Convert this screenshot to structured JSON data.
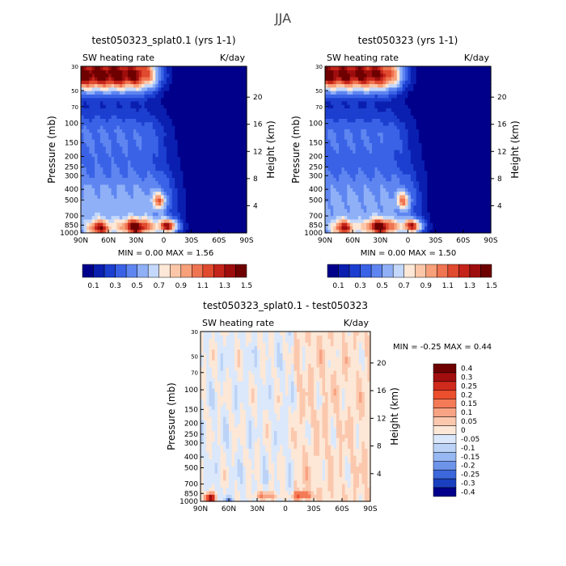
{
  "figure_title": "JJA",
  "legend_labels": {
    "panel_a": [
      "0.1",
      "0.3",
      "0.5",
      "0.7",
      "0.9",
      "1.1",
      "1.3",
      "1.5"
    ],
    "panel_b": [
      "0.1",
      "0.3",
      "0.5",
      "0.7",
      "0.9",
      "1.1",
      "1.3",
      "1.5"
    ],
    "panel_c": [
      "0.4",
      "0.3",
      "0.25",
      "0.2",
      "0.15",
      "0.1",
      "0.05",
      "0",
      "-0.05",
      "-0.1",
      "-0.15",
      "-0.2",
      "-0.25",
      "-0.3",
      "-0.4"
    ]
  },
  "colors": {
    "top_scale": [
      "#00008b",
      "#0a1fb0",
      "#1c3fd0",
      "#3a62e6",
      "#5f86f0",
      "#8fb0f7",
      "#c4d8fb",
      "#fde7d6",
      "#fbc7a8",
      "#f7a07a",
      "#ef7452",
      "#e04a2e",
      "#c5241a",
      "#9e0d0d",
      "#6e0000"
    ],
    "diff_scale": [
      "#6e0000",
      "#a20e0e",
      "#d02a1c",
      "#ec4f2e",
      "#f47b57",
      "#f8a383",
      "#fbc8ae",
      "#fde7d6",
      "#dbe8fb",
      "#bcd3f7",
      "#97b8f2",
      "#6e94ea",
      "#3c68dc",
      "#1a40c0",
      "#00008b"
    ]
  },
  "chart_data": [
    {
      "type": "heatmap",
      "title": "test050323_splat0.1 (yrs 1-1)",
      "subtitle_left": "SW heating rate",
      "subtitle_right": "K/day",
      "ylabel": "Pressure (mb)",
      "ylabel_right": "Height (km)",
      "x_ticks": [
        "90N",
        "60N",
        "30N",
        "0",
        "30S",
        "60S",
        "90S"
      ],
      "y_ticks": [
        "1000",
        "850",
        "700",
        "500",
        "400",
        "300",
        "250",
        "200",
        "150",
        "100",
        "70",
        "50",
        "30"
      ],
      "y_ticks_right": [
        "4",
        "8",
        "12",
        "16",
        "20"
      ],
      "stats": "MIN =   0.00   MAX =   1.56",
      "min": 0.0,
      "max": 1.56,
      "ylim": [
        1000,
        30
      ],
      "xlim": [
        "90N",
        "90S"
      ]
    },
    {
      "type": "heatmap",
      "title": "test050323 (yrs 1-1)",
      "subtitle_left": "SW heating rate",
      "subtitle_right": "K/day",
      "ylabel": "Pressure (mb)",
      "ylabel_right": "Height (km)",
      "x_ticks": [
        "90N",
        "60N",
        "30N",
        "0",
        "30S",
        "60S",
        "90S"
      ],
      "y_ticks": [
        "1000",
        "850",
        "700",
        "500",
        "400",
        "300",
        "250",
        "200",
        "150",
        "100",
        "70",
        "50",
        "30"
      ],
      "y_ticks_right": [
        "4",
        "8",
        "12",
        "16",
        "20"
      ],
      "stats": "MIN =   0.00   MAX =   1.50",
      "min": 0.0,
      "max": 1.5,
      "ylim": [
        1000,
        30
      ],
      "xlim": [
        "90N",
        "90S"
      ]
    },
    {
      "type": "heatmap",
      "title": "test050323_splat0.1 - test050323",
      "subtitle_left": "SW heating rate",
      "subtitle_right": "K/day",
      "ylabel": "Pressure (mb)",
      "ylabel_right": "Height (km)",
      "x_ticks": [
        "90N",
        "60N",
        "30N",
        "0",
        "30S",
        "60S",
        "90S"
      ],
      "y_ticks": [
        "1000",
        "850",
        "700",
        "500",
        "400",
        "300",
        "250",
        "200",
        "150",
        "100",
        "70",
        "50",
        "30"
      ],
      "y_ticks_right": [
        "4",
        "8",
        "12",
        "16",
        "20"
      ],
      "stats": "MIN =  -0.25   MAX =   0.44",
      "min": -0.25,
      "max": 0.44,
      "ylim": [
        1000,
        30
      ],
      "xlim": [
        "90N",
        "90S"
      ]
    }
  ]
}
